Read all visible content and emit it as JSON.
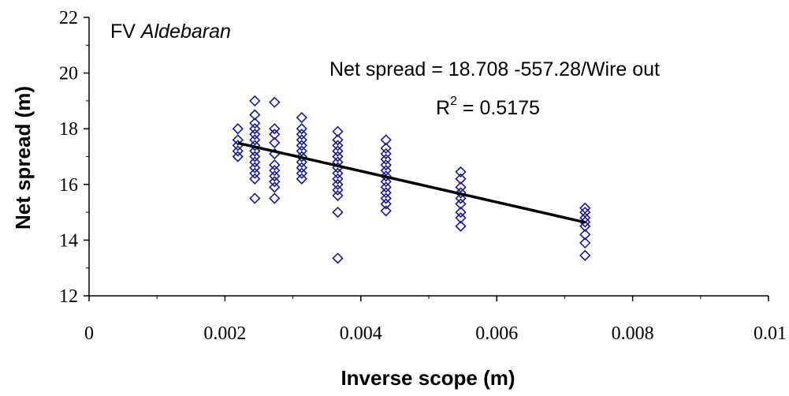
{
  "chart_data": {
    "type": "scatter",
    "title": "",
    "xlabel": "Inverse scope (m)",
    "ylabel": "Net spread (m)",
    "xlim": [
      0,
      0.01
    ],
    "ylim": [
      12,
      22
    ],
    "x_ticks": [
      0,
      0.002,
      0.004,
      0.006,
      0.008,
      0.01
    ],
    "x_tick_labels": [
      "0",
      "0.002",
      "0.004",
      "0.006",
      "0.008",
      "0.01"
    ],
    "y_ticks": [
      12,
      14,
      16,
      18,
      20,
      22
    ],
    "y_tick_labels": [
      "12",
      "14",
      "16",
      "18",
      "20",
      "22"
    ],
    "grid": false,
    "legend": "none",
    "vessel_label_prefix": "FV",
    "vessel_label_name": "Aldebaran",
    "equation_text": "Net spread = 18.708 -557.28/Wire out",
    "r2_label": "R",
    "r2_superscript": "2",
    "r2_value_text": " = 0.5175",
    "marker_color": "#1a1a8c",
    "trendline_color": "#000000",
    "trendline": {
      "intercept": 18.708,
      "slope": -557.28,
      "x_start": 0.00219,
      "x_end": 0.0073
    },
    "series": [
      {
        "points": [
          [
            0.00219,
            17.0
          ],
          [
            0.00219,
            17.2
          ],
          [
            0.00219,
            17.4
          ],
          [
            0.00219,
            17.6
          ],
          [
            0.00219,
            18.0
          ],
          [
            0.00244,
            15.5
          ],
          [
            0.00244,
            16.2
          ],
          [
            0.00244,
            16.4
          ],
          [
            0.00244,
            16.6
          ],
          [
            0.00244,
            16.8
          ],
          [
            0.00244,
            17.0
          ],
          [
            0.00244,
            17.2
          ],
          [
            0.00244,
            17.4
          ],
          [
            0.00244,
            17.6
          ],
          [
            0.00244,
            17.8
          ],
          [
            0.00244,
            18.0
          ],
          [
            0.00244,
            18.2
          ],
          [
            0.00244,
            18.5
          ],
          [
            0.00244,
            19.0
          ],
          [
            0.00273,
            15.5
          ],
          [
            0.00273,
            15.9
          ],
          [
            0.00273,
            16.1
          ],
          [
            0.00273,
            16.3
          ],
          [
            0.00273,
            16.5
          ],
          [
            0.00273,
            16.7
          ],
          [
            0.00273,
            17.1
          ],
          [
            0.00273,
            17.5
          ],
          [
            0.00273,
            17.8
          ],
          [
            0.00273,
            18.0
          ],
          [
            0.00273,
            18.95
          ],
          [
            0.00313,
            16.2
          ],
          [
            0.00313,
            16.4
          ],
          [
            0.00313,
            16.6
          ],
          [
            0.00313,
            16.8
          ],
          [
            0.00313,
            17.0
          ],
          [
            0.00313,
            17.2
          ],
          [
            0.00313,
            17.4
          ],
          [
            0.00313,
            17.6
          ],
          [
            0.00313,
            17.8
          ],
          [
            0.00313,
            18.0
          ],
          [
            0.00313,
            18.4
          ],
          [
            0.00366,
            13.35
          ],
          [
            0.00366,
            15.0
          ],
          [
            0.00366,
            15.6
          ],
          [
            0.00366,
            15.8
          ],
          [
            0.00366,
            16.0
          ],
          [
            0.00366,
            16.2
          ],
          [
            0.00366,
            16.4
          ],
          [
            0.00366,
            16.6
          ],
          [
            0.00366,
            16.8
          ],
          [
            0.00366,
            17.0
          ],
          [
            0.00366,
            17.2
          ],
          [
            0.00366,
            17.4
          ],
          [
            0.00366,
            17.6
          ],
          [
            0.00366,
            17.9
          ],
          [
            0.00437,
            15.05
          ],
          [
            0.00437,
            15.3
          ],
          [
            0.00437,
            15.5
          ],
          [
            0.00437,
            15.7
          ],
          [
            0.00437,
            15.9
          ],
          [
            0.00437,
            16.1
          ],
          [
            0.00437,
            16.3
          ],
          [
            0.00437,
            16.5
          ],
          [
            0.00437,
            16.7
          ],
          [
            0.00437,
            16.9
          ],
          [
            0.00437,
            17.1
          ],
          [
            0.00437,
            17.3
          ],
          [
            0.00437,
            17.6
          ],
          [
            0.00547,
            14.5
          ],
          [
            0.00547,
            14.8
          ],
          [
            0.00547,
            15.0
          ],
          [
            0.00547,
            15.3
          ],
          [
            0.00547,
            15.5
          ],
          [
            0.00547,
            15.7
          ],
          [
            0.00547,
            15.9
          ],
          [
            0.00547,
            16.2
          ],
          [
            0.00547,
            16.45
          ],
          [
            0.0073,
            13.45
          ],
          [
            0.0073,
            13.9
          ],
          [
            0.0073,
            14.2
          ],
          [
            0.0073,
            14.5
          ],
          [
            0.0073,
            14.65
          ],
          [
            0.0073,
            14.8
          ],
          [
            0.0073,
            15.0
          ],
          [
            0.0073,
            15.15
          ]
        ]
      }
    ]
  }
}
